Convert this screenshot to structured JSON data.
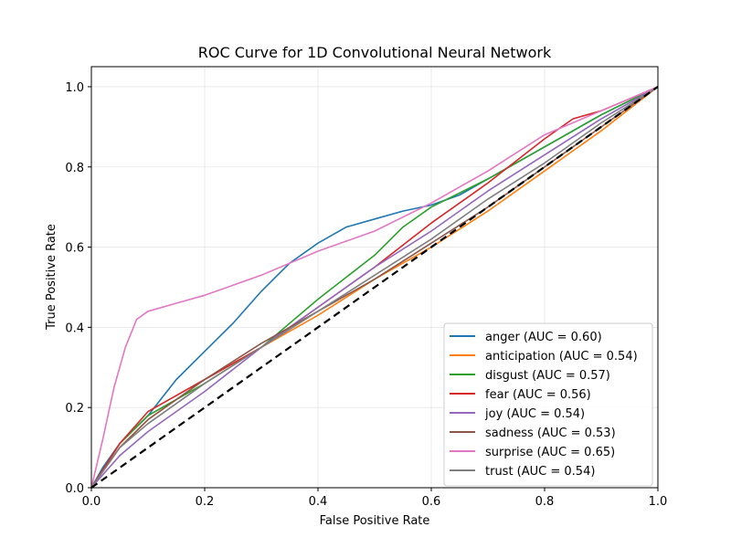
{
  "chart_data": {
    "type": "line",
    "title": "ROC Curve for 1D Convolutional Neural Network",
    "xlabel": "False Positive Rate",
    "ylabel": "True Positive Rate",
    "xlim": [
      0.0,
      1.0
    ],
    "ylim": [
      0.0,
      1.05
    ],
    "xticks": [
      "0.0",
      "0.2",
      "0.4",
      "0.6",
      "0.8",
      "1.0"
    ],
    "yticks": [
      "0.0",
      "0.2",
      "0.4",
      "0.6",
      "0.8",
      "1.0"
    ],
    "xtick_values": [
      0.0,
      0.2,
      0.4,
      0.6,
      0.8,
      1.0
    ],
    "ytick_values": [
      0.0,
      0.2,
      0.4,
      0.6,
      0.8,
      1.0
    ],
    "grid": true,
    "legend_position": "lower-right",
    "diagonal": {
      "x": [
        0,
        1
      ],
      "y": [
        0,
        1
      ],
      "color": "#000000",
      "style": "dashed"
    },
    "series": [
      {
        "name": "anger (AUC = 0.60)",
        "color": "#1f77b4",
        "x": [
          0,
          0.02,
          0.05,
          0.1,
          0.15,
          0.2,
          0.25,
          0.3,
          0.35,
          0.4,
          0.45,
          0.5,
          0.55,
          0.6,
          0.65,
          0.7,
          0.8,
          0.9,
          1.0
        ],
        "y": [
          0,
          0.05,
          0.11,
          0.18,
          0.27,
          0.34,
          0.41,
          0.49,
          0.56,
          0.61,
          0.65,
          0.67,
          0.69,
          0.705,
          0.73,
          0.77,
          0.85,
          0.93,
          1.0
        ]
      },
      {
        "name": "anticipation (AUC = 0.54)",
        "color": "#ff7f0e",
        "x": [
          0,
          0.05,
          0.1,
          0.2,
          0.3,
          0.4,
          0.5,
          0.6,
          0.7,
          0.8,
          0.9,
          1.0
        ],
        "y": [
          0,
          0.1,
          0.17,
          0.27,
          0.35,
          0.43,
          0.52,
          0.6,
          0.69,
          0.79,
          0.89,
          1.0
        ]
      },
      {
        "name": "disgust (AUC = 0.57)",
        "color": "#2ca02c",
        "x": [
          0,
          0.05,
          0.1,
          0.2,
          0.3,
          0.4,
          0.5,
          0.55,
          0.6,
          0.7,
          0.8,
          0.9,
          1.0
        ],
        "y": [
          0,
          0.11,
          0.18,
          0.26,
          0.35,
          0.47,
          0.58,
          0.65,
          0.7,
          0.77,
          0.85,
          0.93,
          1.0
        ]
      },
      {
        "name": "fear (AUC = 0.56)",
        "color": "#d62728",
        "x": [
          0,
          0.05,
          0.1,
          0.2,
          0.3,
          0.4,
          0.5,
          0.6,
          0.7,
          0.8,
          0.85,
          0.9,
          1.0
        ],
        "y": [
          0,
          0.11,
          0.19,
          0.27,
          0.35,
          0.45,
          0.55,
          0.66,
          0.76,
          0.87,
          0.92,
          0.94,
          1.0
        ]
      },
      {
        "name": "joy (AUC = 0.54)",
        "color": "#9467bd",
        "x": [
          0,
          0.05,
          0.1,
          0.2,
          0.3,
          0.4,
          0.5,
          0.6,
          0.7,
          0.8,
          0.9,
          1.0
        ],
        "y": [
          0,
          0.08,
          0.14,
          0.24,
          0.35,
          0.45,
          0.55,
          0.64,
          0.74,
          0.83,
          0.92,
          1.0
        ]
      },
      {
        "name": "sadness (AUC = 0.53)",
        "color": "#8c564b",
        "x": [
          0,
          0.05,
          0.1,
          0.2,
          0.3,
          0.4,
          0.5,
          0.6,
          0.7,
          0.8,
          0.9,
          1.0
        ],
        "y": [
          0,
          0.1,
          0.17,
          0.27,
          0.36,
          0.44,
          0.52,
          0.61,
          0.7,
          0.8,
          0.9,
          1.0
        ]
      },
      {
        "name": "surprise (AUC = 0.65)",
        "color": "#e377c2",
        "x": [
          0,
          0.02,
          0.04,
          0.06,
          0.08,
          0.1,
          0.15,
          0.2,
          0.3,
          0.4,
          0.5,
          0.6,
          0.7,
          0.8,
          0.9,
          1.0
        ],
        "y": [
          0,
          0.12,
          0.25,
          0.35,
          0.42,
          0.44,
          0.46,
          0.48,
          0.53,
          0.59,
          0.64,
          0.71,
          0.79,
          0.88,
          0.94,
          1.0
        ]
      },
      {
        "name": "trust (AUC = 0.54)",
        "color": "#7f7f7f",
        "x": [
          0,
          0.05,
          0.1,
          0.2,
          0.3,
          0.4,
          0.5,
          0.6,
          0.7,
          0.8,
          0.9,
          1.0
        ],
        "y": [
          0,
          0.1,
          0.16,
          0.26,
          0.35,
          0.44,
          0.53,
          0.62,
          0.72,
          0.81,
          0.91,
          1.0
        ]
      }
    ]
  }
}
